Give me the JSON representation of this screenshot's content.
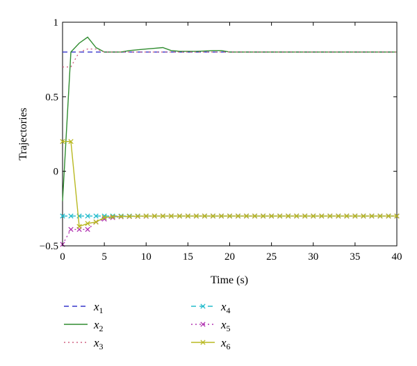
{
  "chart_data": {
    "type": "line",
    "title": "",
    "xlabel": "Time (s)",
    "ylabel": "Trajectories",
    "xlim": [
      0,
      40
    ],
    "ylim": [
      -0.5,
      1
    ],
    "xticks": [
      0,
      5,
      10,
      15,
      20,
      25,
      30,
      35,
      40
    ],
    "yticks": [
      -0.5,
      0,
      0.5,
      1
    ],
    "xtick_labels": [
      "0",
      "5",
      "10",
      "15",
      "20",
      "25",
      "30",
      "35",
      "40"
    ],
    "ytick_labels": [
      "−0.5",
      "0",
      "0.5",
      "1"
    ],
    "grid": false,
    "legend_position": "below",
    "series": [
      {
        "name": "x1",
        "legend_main": "x",
        "legend_sub": "1",
        "color": "#3333cc",
        "linestyle": "dashed",
        "marker": "none",
        "x": [
          0,
          40
        ],
        "y": [
          0.8,
          0.8
        ]
      },
      {
        "name": "x2",
        "legend_main": "x",
        "legend_sub": "2",
        "color": "#2e8b2e",
        "linestyle": "solid",
        "marker": "none",
        "x": [
          0,
          1,
          2,
          3,
          4,
          5,
          6,
          7,
          8,
          9,
          10,
          11,
          12,
          13,
          14,
          15,
          16,
          17,
          18,
          19,
          20,
          21,
          22,
          25,
          30,
          35,
          40
        ],
        "y": [
          -0.2,
          0.8,
          0.86,
          0.9,
          0.83,
          0.8,
          0.8,
          0.8,
          0.81,
          0.815,
          0.82,
          0.825,
          0.83,
          0.81,
          0.805,
          0.805,
          0.805,
          0.807,
          0.81,
          0.81,
          0.8,
          0.8,
          0.8,
          0.8,
          0.8,
          0.8,
          0.8
        ]
      },
      {
        "name": "x3",
        "legend_main": "x",
        "legend_sub": "3",
        "color": "#d06080",
        "linestyle": "dotted",
        "marker": "none",
        "x": [
          0,
          1,
          2,
          3,
          4,
          5,
          40
        ],
        "y": [
          0.7,
          0.7,
          0.8,
          0.82,
          0.82,
          0.8,
          0.8
        ]
      },
      {
        "name": "x4",
        "legend_main": "x",
        "legend_sub": "4",
        "color": "#22bbcc",
        "linestyle": "dashed",
        "marker": "x",
        "x": [
          0,
          1,
          2,
          3,
          4,
          5,
          6,
          7,
          8,
          9,
          10,
          11,
          12,
          13,
          14,
          15,
          16,
          17,
          18,
          19,
          20,
          21,
          22,
          23,
          24,
          25,
          26,
          27,
          28,
          29,
          30,
          31,
          32,
          33,
          34,
          35,
          36,
          37,
          38,
          39,
          40
        ],
        "y": [
          -0.3,
          -0.3,
          -0.3,
          -0.3,
          -0.3,
          -0.3,
          -0.3,
          -0.3,
          -0.3,
          -0.3,
          -0.3,
          -0.3,
          -0.3,
          -0.3,
          -0.3,
          -0.3,
          -0.3,
          -0.3,
          -0.3,
          -0.3,
          -0.3,
          -0.3,
          -0.3,
          -0.3,
          -0.3,
          -0.3,
          -0.3,
          -0.3,
          -0.3,
          -0.3,
          -0.3,
          -0.3,
          -0.3,
          -0.3,
          -0.3,
          -0.3,
          -0.3,
          -0.3,
          -0.3,
          -0.3,
          -0.3
        ]
      },
      {
        "name": "x5",
        "legend_main": "x",
        "legend_sub": "5",
        "color": "#b030b0",
        "linestyle": "dotted",
        "marker": "x",
        "x": [
          0,
          1,
          2,
          3,
          4,
          5,
          6,
          7,
          8,
          9,
          10,
          11,
          12,
          13,
          14,
          15,
          16,
          17,
          18,
          19,
          20,
          21,
          22,
          23,
          24,
          25,
          26,
          27,
          28,
          29,
          30,
          31,
          32,
          33,
          34,
          35,
          36,
          37,
          38,
          39,
          40
        ],
        "y": [
          -0.49,
          -0.39,
          -0.39,
          -0.39,
          -0.34,
          -0.32,
          -0.31,
          -0.305,
          -0.303,
          -0.302,
          -0.301,
          -0.3,
          -0.3,
          -0.3,
          -0.3,
          -0.3,
          -0.3,
          -0.3,
          -0.3,
          -0.3,
          -0.3,
          -0.3,
          -0.3,
          -0.3,
          -0.3,
          -0.3,
          -0.3,
          -0.3,
          -0.3,
          -0.3,
          -0.3,
          -0.3,
          -0.3,
          -0.3,
          -0.3,
          -0.3,
          -0.3,
          -0.3,
          -0.3,
          -0.3,
          -0.3
        ]
      },
      {
        "name": "x6",
        "legend_main": "x",
        "legend_sub": "6",
        "color": "#b8b820",
        "linestyle": "solid",
        "marker": "x",
        "x": [
          0,
          1,
          2,
          3,
          4,
          5,
          6,
          7,
          8,
          9,
          10,
          11,
          12,
          13,
          14,
          15,
          16,
          17,
          18,
          19,
          20,
          21,
          22,
          23,
          24,
          25,
          26,
          27,
          28,
          29,
          30,
          31,
          32,
          33,
          34,
          35,
          36,
          37,
          38,
          39,
          40
        ],
        "y": [
          0.2,
          0.2,
          -0.37,
          -0.35,
          -0.34,
          -0.31,
          -0.305,
          -0.303,
          -0.302,
          -0.301,
          -0.3,
          -0.3,
          -0.3,
          -0.3,
          -0.3,
          -0.3,
          -0.3,
          -0.3,
          -0.3,
          -0.3,
          -0.3,
          -0.3,
          -0.3,
          -0.3,
          -0.3,
          -0.3,
          -0.3,
          -0.3,
          -0.3,
          -0.3,
          -0.3,
          -0.3,
          -0.3,
          -0.3,
          -0.3,
          -0.3,
          -0.3,
          -0.3,
          -0.3,
          -0.3,
          -0.3
        ]
      }
    ]
  }
}
